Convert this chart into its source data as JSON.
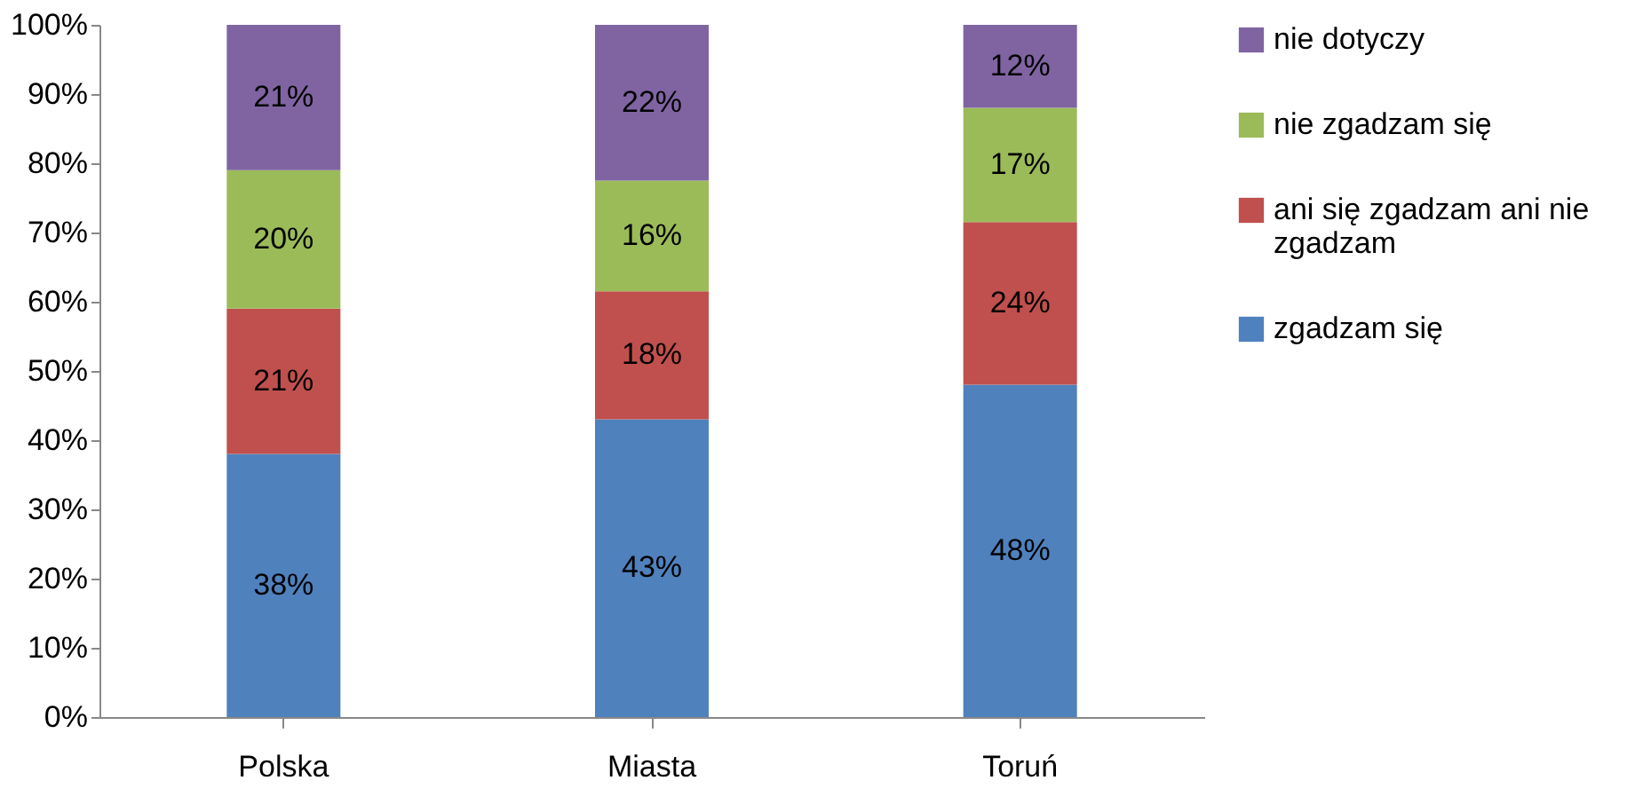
{
  "chart_data": {
    "type": "bar",
    "stacked": true,
    "categories": [
      "Polska",
      "Miasta",
      "Toruń"
    ],
    "series": [
      {
        "name": "zgadzam się",
        "color": "#4f81bd",
        "values": [
          38,
          43,
          48
        ],
        "value_labels": [
          "38%",
          "43%",
          "48%"
        ]
      },
      {
        "name": "ani się zgadzam ani nie zgadzam",
        "color": "#c0504d",
        "values": [
          21,
          18.5,
          23.5
        ],
        "value_labels": [
          "21%",
          "18%",
          "24%"
        ]
      },
      {
        "name": "nie zgadzam się",
        "color": "#9bbb59",
        "values": [
          20,
          16,
          16.5
        ],
        "value_labels": [
          "20%",
          "16%",
          "17%"
        ]
      },
      {
        "name": "nie dotyczy",
        "color": "#8064a2",
        "values": [
          21,
          22.5,
          12
        ],
        "value_labels": [
          "21%",
          "22%",
          "12%"
        ]
      }
    ],
    "ylim": [
      0,
      100
    ],
    "yticks": [
      {
        "value": 0,
        "label": "0%"
      },
      {
        "value": 10,
        "label": "10%"
      },
      {
        "value": 20,
        "label": "20%"
      },
      {
        "value": 30,
        "label": "30%"
      },
      {
        "value": 40,
        "label": "40%"
      },
      {
        "value": 50,
        "label": "50%"
      },
      {
        "value": 60,
        "label": "60%"
      },
      {
        "value": 70,
        "label": "70%"
      },
      {
        "value": 80,
        "label": "80%"
      },
      {
        "value": 90,
        "label": "90%"
      },
      {
        "value": 100,
        "label": "100%"
      }
    ],
    "grid": false,
    "legend": "right"
  }
}
